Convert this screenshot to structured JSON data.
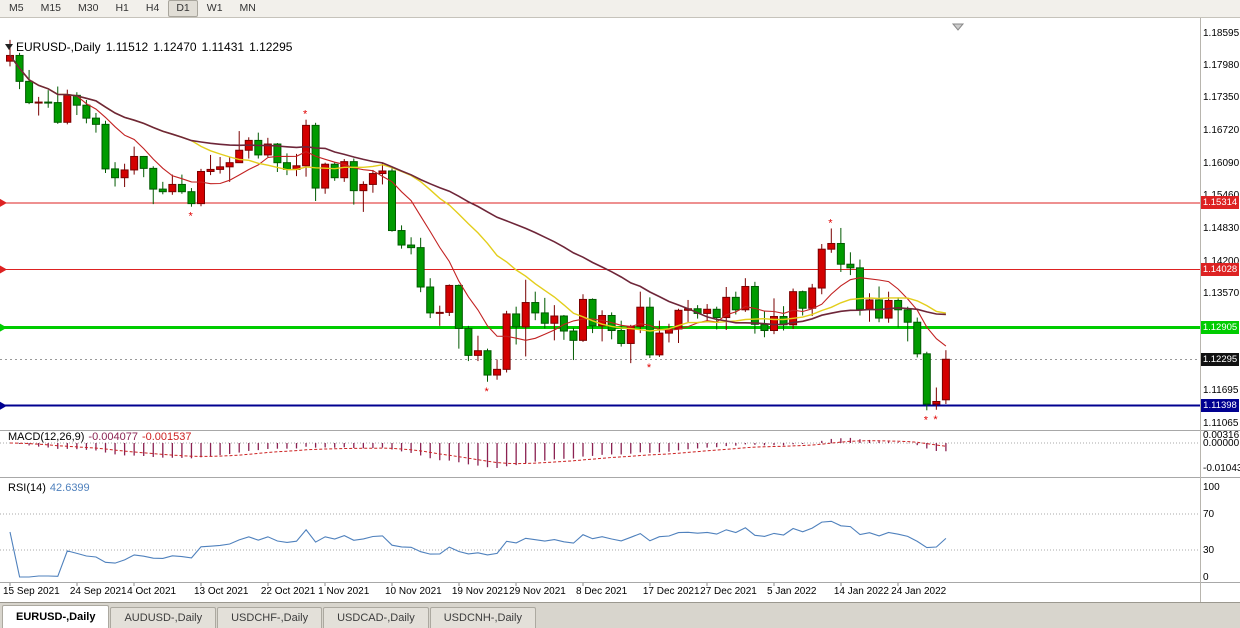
{
  "toolbar": {
    "timeframes": [
      "M5",
      "M15",
      "M30",
      "H1",
      "H4",
      "D1",
      "W1",
      "MN"
    ],
    "active": "D1"
  },
  "header": {
    "symbol": "EURUSD-,Daily",
    "open": "1.11512",
    "high": "1.12470",
    "low": "1.11431",
    "close": "1.12295"
  },
  "tabs": [
    {
      "label": "EURUSD-,Daily",
      "active": true
    },
    {
      "label": "AUDUSD-,Daily",
      "active": false
    },
    {
      "label": "USDCHF-,Daily",
      "active": false
    },
    {
      "label": "USDCAD-,Daily",
      "active": false
    },
    {
      "label": "USDCNH-,Daily",
      "active": false
    }
  ],
  "colors": {
    "bull_body": "#D40000",
    "bull_border": "#7A0000",
    "bear_body": "#009B00",
    "bear_border": "#005A00",
    "ma_fast": "#C22222",
    "ma_mid": "#E3CE1C",
    "ma_slow": "#6E2639",
    "hline_red": "#DD2222",
    "hline_green": "#00CC00",
    "hline_blue": "#000090",
    "current_badge": "#111111",
    "macd_hist": "#8B2252",
    "macd_signal": "#CC2222",
    "rsi_line": "#4F81BD",
    "fractal": "#E00000",
    "separator": "#A8A8A8",
    "level_dotted": "#AAAAAA"
  },
  "chart_data": {
    "type": "candlestick",
    "title": "EURUSD-,Daily",
    "symbol": "EURUSD",
    "timeframe": "Daily",
    "price_range": {
      "top": 1.1869,
      "bottom": 1.10968
    },
    "y_axis_labels": [
      "1.18595",
      "1.17980",
      "1.17350",
      "1.16720",
      "1.16090",
      "1.15460",
      "1.14830",
      "1.14200",
      "1.13570",
      "1.11695",
      "1.11065"
    ],
    "x_tick_indices": [
      0,
      7,
      13,
      20,
      27,
      33,
      40,
      47,
      53,
      60,
      67,
      73,
      80,
      87,
      93
    ],
    "x_tick_labels": [
      "15 Sep 2021",
      "24 Sep 2021",
      "4 Oct 2021",
      "13 Oct 2021",
      "22 Oct 2021",
      "1 Nov 2021",
      "10 Nov 2021",
      "19 Nov 2021",
      "29 Nov 2021",
      "8 Dec 2021",
      "17 Dec 2021",
      "27 Dec 2021",
      "5 Jan 2022",
      "14 Jan 2022",
      "24 Jan 2022"
    ],
    "candles": [
      [
        1.1805,
        1.1846,
        1.1795,
        1.1816
      ],
      [
        1.1816,
        1.1821,
        1.1751,
        1.1766
      ],
      [
        1.1766,
        1.1788,
        1.1722,
        1.1725
      ],
      [
        1.1725,
        1.1736,
        1.17,
        1.1726
      ],
      [
        1.1726,
        1.1749,
        1.1715,
        1.1725
      ],
      [
        1.1725,
        1.1756,
        1.1684,
        1.1687
      ],
      [
        1.1687,
        1.175,
        1.1683,
        1.1739
      ],
      [
        1.1739,
        1.1745,
        1.1701,
        1.172
      ],
      [
        1.172,
        1.173,
        1.1685,
        1.1695
      ],
      [
        1.1695,
        1.1705,
        1.1667,
        1.1683
      ],
      [
        1.1683,
        1.169,
        1.1589,
        1.1597
      ],
      [
        1.1597,
        1.161,
        1.1563,
        1.158
      ],
      [
        1.158,
        1.1607,
        1.1562,
        1.1595
      ],
      [
        1.1595,
        1.164,
        1.1586,
        1.1621
      ],
      [
        1.1621,
        1.1622,
        1.1581,
        1.1598
      ],
      [
        1.1598,
        1.1602,
        1.1529,
        1.1558
      ],
      [
        1.1558,
        1.1572,
        1.1548,
        1.1553
      ],
      [
        1.1553,
        1.1586,
        1.1547,
        1.1567
      ],
      [
        1.1567,
        1.1586,
        1.1549,
        1.1553
      ],
      [
        1.1553,
        1.156,
        1.1524,
        1.153
      ],
      [
        1.153,
        1.1597,
        1.1525,
        1.1592
      ],
      [
        1.1592,
        1.1624,
        1.1585,
        1.1596
      ],
      [
        1.1596,
        1.162,
        1.1588,
        1.1601
      ],
      [
        1.1601,
        1.1621,
        1.1572,
        1.1609
      ],
      [
        1.1609,
        1.167,
        1.1609,
        1.1633
      ],
      [
        1.1633,
        1.1658,
        1.1617,
        1.1652
      ],
      [
        1.1652,
        1.1667,
        1.1617,
        1.1624
      ],
      [
        1.1624,
        1.1657,
        1.162,
        1.1645
      ],
      [
        1.1645,
        1.1647,
        1.1591,
        1.1609
      ],
      [
        1.1609,
        1.1627,
        1.1585,
        1.1596
      ],
      [
        1.1596,
        1.1626,
        1.1583,
        1.1603
      ],
      [
        1.1603,
        1.1692,
        1.1582,
        1.1681
      ],
      [
        1.1681,
        1.1686,
        1.1535,
        1.156
      ],
      [
        1.156,
        1.1609,
        1.1549,
        1.1606
      ],
      [
        1.1606,
        1.161,
        1.1574,
        1.158
      ],
      [
        1.158,
        1.1616,
        1.1572,
        1.1611
      ],
      [
        1.1611,
        1.1617,
        1.1528,
        1.1555
      ],
      [
        1.1555,
        1.1573,
        1.1514,
        1.1567
      ],
      [
        1.1567,
        1.1595,
        1.1551,
        1.1588
      ],
      [
        1.1588,
        1.1609,
        1.1567,
        1.1593
      ],
      [
        1.1593,
        1.1598,
        1.1476,
        1.1478
      ],
      [
        1.1478,
        1.1488,
        1.1443,
        1.145
      ],
      [
        1.145,
        1.1465,
        1.1432,
        1.1445
      ],
      [
        1.1445,
        1.1464,
        1.1359,
        1.1369
      ],
      [
        1.1369,
        1.1386,
        1.1309,
        1.1319
      ],
      [
        1.1319,
        1.1333,
        1.1294,
        1.132
      ],
      [
        1.132,
        1.1374,
        1.1313,
        1.1372
      ],
      [
        1.1372,
        1.1374,
        1.125,
        1.1289
      ],
      [
        1.1289,
        1.1294,
        1.1226,
        1.1237
      ],
      [
        1.1237,
        1.1275,
        1.1226,
        1.1246
      ],
      [
        1.1246,
        1.125,
        1.1186,
        1.1199
      ],
      [
        1.1199,
        1.1229,
        1.119,
        1.121
      ],
      [
        1.121,
        1.1323,
        1.1204,
        1.1317
      ],
      [
        1.1317,
        1.1331,
        1.1258,
        1.1292
      ],
      [
        1.1292,
        1.1383,
        1.1235,
        1.1339
      ],
      [
        1.1339,
        1.136,
        1.1305,
        1.1319
      ],
      [
        1.1319,
        1.1348,
        1.1289,
        1.1299
      ],
      [
        1.1299,
        1.1334,
        1.1266,
        1.1313
      ],
      [
        1.1313,
        1.1315,
        1.1267,
        1.1284
      ],
      [
        1.1284,
        1.129,
        1.1228,
        1.1266
      ],
      [
        1.1266,
        1.1355,
        1.1263,
        1.1345
      ],
      [
        1.1345,
        1.1347,
        1.128,
        1.1294
      ],
      [
        1.1294,
        1.1324,
        1.1264,
        1.1314
      ],
      [
        1.1314,
        1.132,
        1.1268,
        1.1285
      ],
      [
        1.1285,
        1.1304,
        1.1254,
        1.126
      ],
      [
        1.126,
        1.1296,
        1.1222,
        1.1293
      ],
      [
        1.1293,
        1.136,
        1.128,
        1.133
      ],
      [
        1.133,
        1.1349,
        1.1232,
        1.1238
      ],
      [
        1.1238,
        1.1304,
        1.1234,
        1.128
      ],
      [
        1.128,
        1.1298,
        1.1262,
        1.1288
      ],
      [
        1.1288,
        1.1327,
        1.1261,
        1.1324
      ],
      [
        1.1324,
        1.1344,
        1.13,
        1.1327
      ],
      [
        1.1327,
        1.1334,
        1.1308,
        1.1318
      ],
      [
        1.1318,
        1.1336,
        1.1303,
        1.1326
      ],
      [
        1.1326,
        1.1331,
        1.1287,
        1.131
      ],
      [
        1.131,
        1.1369,
        1.1286,
        1.1349
      ],
      [
        1.1349,
        1.136,
        1.1316,
        1.1325
      ],
      [
        1.1325,
        1.1386,
        1.1321,
        1.137
      ],
      [
        1.137,
        1.1379,
        1.1279,
        1.1297
      ],
      [
        1.1297,
        1.1323,
        1.1272,
        1.1285
      ],
      [
        1.1285,
        1.1347,
        1.1278,
        1.1312
      ],
      [
        1.1312,
        1.1332,
        1.1285,
        1.1296
      ],
      [
        1.1296,
        1.1366,
        1.1288,
        1.136
      ],
      [
        1.136,
        1.1362,
        1.1314,
        1.1328
      ],
      [
        1.1328,
        1.1375,
        1.1313,
        1.1367
      ],
      [
        1.1367,
        1.1452,
        1.1355,
        1.1442
      ],
      [
        1.1442,
        1.1482,
        1.1435,
        1.1453
      ],
      [
        1.1453,
        1.1483,
        1.1398,
        1.1413
      ],
      [
        1.1413,
        1.1436,
        1.1392,
        1.1406
      ],
      [
        1.1406,
        1.1422,
        1.1314,
        1.1326
      ],
      [
        1.1326,
        1.1357,
        1.1302,
        1.1344
      ],
      [
        1.1344,
        1.137,
        1.1301,
        1.1309
      ],
      [
        1.1309,
        1.136,
        1.13,
        1.1343
      ],
      [
        1.1343,
        1.1349,
        1.1291,
        1.1325
      ],
      [
        1.1325,
        1.1331,
        1.1264,
        1.1301
      ],
      [
        1.1301,
        1.131,
        1.1233,
        1.124
      ],
      [
        1.124,
        1.1244,
        1.1131,
        1.1143
      ],
      [
        1.1143,
        1.1175,
        1.1132,
        1.1148
      ],
      [
        1.11512,
        1.1247,
        1.11431,
        1.12295
      ]
    ],
    "moving_averages": [
      {
        "period": 8,
        "color_key": "ma_fast"
      },
      {
        "period": 20,
        "color_key": "ma_mid"
      },
      {
        "period": 34,
        "color_key": "ma_slow"
      }
    ],
    "hlines": [
      {
        "name": "resistance-upper",
        "price": 1.15314,
        "label": "1.15314",
        "color_key": "hline_red",
        "width": 1
      },
      {
        "name": "resistance-lower",
        "price": 1.14028,
        "label": "1.14028",
        "color_key": "hline_red",
        "width": 1
      },
      {
        "name": "support-green",
        "price": 1.12905,
        "label": "1.12905",
        "color_key": "hline_green",
        "width": 3
      },
      {
        "name": "support-blue",
        "price": 1.11398,
        "label": "1.11398",
        "color_key": "hline_blue",
        "width": 2
      }
    ],
    "current_price": {
      "value": 1.12295,
      "label": "1.12295"
    },
    "fractals": {
      "up": [
        31,
        86
      ],
      "down": [
        19,
        50,
        67,
        96,
        97
      ]
    },
    "macd": {
      "name": "MACD(12,26,9)",
      "fast": 12,
      "slow": 26,
      "signal": 9,
      "value": "-0.004077",
      "signal_value": "-0.001537",
      "axis_labels": [
        "0.00316",
        "0.00000",
        "-0.01043"
      ]
    },
    "rsi": {
      "name": "RSI(14)",
      "period": 14,
      "value": "42.6399",
      "levels": [
        70,
        30
      ],
      "axis_labels": [
        "100",
        "70",
        "30",
        "0"
      ],
      "range": [
        0,
        100
      ]
    }
  }
}
